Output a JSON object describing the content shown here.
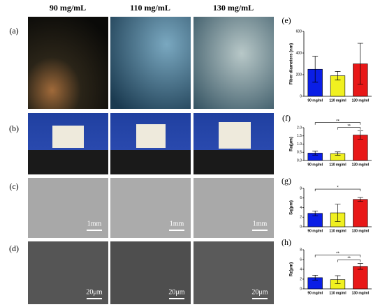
{
  "figure": {
    "columns": [
      "90 mg/mL",
      "110 mg/mL",
      "130 mg/mL"
    ],
    "rows": [
      "(a)",
      "(b)",
      "(c)",
      "(d)"
    ],
    "scale_bars": [
      "1mm",
      "1mm",
      "1mm",
      "20μm",
      "20μm",
      "20μm"
    ]
  },
  "chart_data": [
    {
      "type": "bar",
      "title": "(e)",
      "y_label": "Fiber diameters (nm)",
      "categories": [
        "90 mg/ml",
        "110 mg/ml",
        "130 mg/ml"
      ],
      "values": [
        250,
        190,
        300
      ],
      "errors": [
        120,
        40,
        190
      ],
      "colors": [
        "#0a1ee6",
        "#f0f020",
        "#e81818"
      ],
      "ylim": [
        0,
        600
      ],
      "yticks": [
        0,
        200,
        400,
        600
      ],
      "annotations": []
    },
    {
      "type": "bar",
      "title": "(f)",
      "y_label": "Ra(μm)",
      "categories": [
        "90 mg/ml",
        "110 mg/ml",
        "130 mg/ml"
      ],
      "values": [
        0.45,
        0.42,
        1.55
      ],
      "errors": [
        0.12,
        0.1,
        0.25
      ],
      "colors": [
        "#0a1ee6",
        "#f0f020",
        "#e81818"
      ],
      "ylim": [
        0,
        2
      ],
      "yticks": [
        {
          "value": 0,
          "label": "0.0"
        },
        {
          "value": 0.5,
          "label": "0.5"
        },
        {
          "value": 1,
          "label": "1.0"
        },
        {
          "value": 1.5,
          "label": "1.5"
        },
        {
          "value": 2,
          "label": "2.0"
        }
      ],
      "annotations": [
        {
          "text": "**",
          "between": [
            "90 mg/ml",
            "130 mg/ml"
          ]
        },
        {
          "text": "**",
          "between": [
            "110 mg/ml",
            "130 mg/ml"
          ]
        }
      ]
    },
    {
      "type": "bar",
      "title": "(g)",
      "y_label": "Sq(μm)",
      "categories": [
        "90 mg/ml",
        "110 mg/ml",
        "130 mg/ml"
      ],
      "values": [
        2.8,
        2.9,
        5.7
      ],
      "errors": [
        0.5,
        1.8,
        0.4
      ],
      "colors": [
        "#0a1ee6",
        "#f0f020",
        "#e81818"
      ],
      "ylim": [
        0,
        8
      ],
      "yticks": [
        0,
        2,
        4,
        6,
        8
      ],
      "annotations": [
        {
          "text": "*",
          "between": [
            "90 mg/ml",
            "130 mg/ml"
          ]
        }
      ]
    },
    {
      "type": "bar",
      "title": "(h)",
      "y_label": "Rz(μm)",
      "categories": [
        "90 mg/ml",
        "110 mg/ml",
        "130 mg/ml"
      ],
      "values": [
        2.3,
        1.9,
        4.6
      ],
      "errors": [
        0.5,
        0.8,
        0.6
      ],
      "colors": [
        "#0a1ee6",
        "#f0f020",
        "#e81818"
      ],
      "ylim": [
        0,
        8
      ],
      "yticks": [
        0,
        2,
        4,
        6,
        8
      ],
      "annotations": [
        {
          "text": "**",
          "between": [
            "90 mg/ml",
            "130 mg/ml"
          ]
        },
        {
          "text": "**",
          "between": [
            "110 mg/ml",
            "130 mg/ml"
          ]
        }
      ]
    }
  ]
}
